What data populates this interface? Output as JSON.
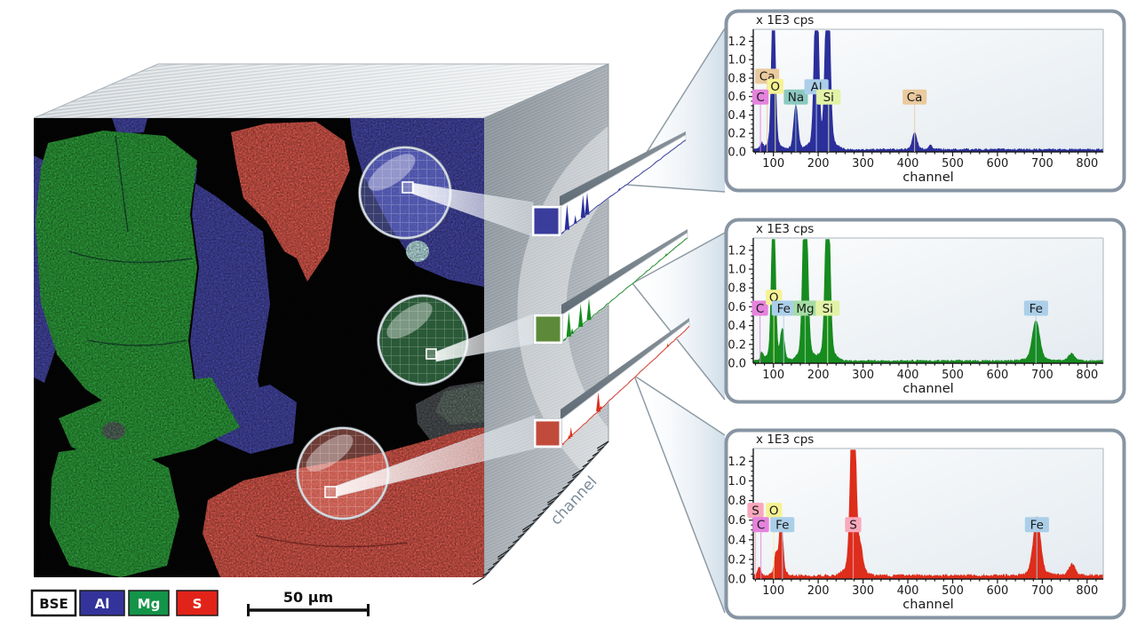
{
  "figure": {
    "background": "#ffffff"
  },
  "colors": {
    "al_blue": "#33339B",
    "mg_green": "#149448",
    "s_red": "#E2231A",
    "map_blue": "#4648A8",
    "map_green": "#2EA13C",
    "map_light_green": "#7FBF7F",
    "map_red": "#E05A4E",
    "rod_blue": "#3A3D9C",
    "rod_green": "#5C8A38",
    "rod_red": "#C14B3B",
    "panel_border": "#8795A3",
    "cube_axis_text": "#7B8B98"
  },
  "element_colors": {
    "C": "#E583DD",
    "O": "#F6F293",
    "Na": "#8BC8C0",
    "Al": "#ABCFE9",
    "Si": "#E3F2A6",
    "Ca": "#EACA9E",
    "Fe": "#ABCFE9",
    "Mg": "#A4DCA4",
    "S": "#F9A8BC"
  },
  "legend": {
    "items": [
      {
        "label": "BSE"
      },
      {
        "label": "Al"
      },
      {
        "label": "Mg"
      },
      {
        "label": "S"
      }
    ],
    "scale_bar_label": "50 µm"
  },
  "cube": {
    "axis_label": "channel"
  },
  "chart_data": [
    {
      "type": "area",
      "title": "x 1E3 cps",
      "xlabel": "channel",
      "region_element": "Al",
      "color": "#2B2F9B",
      "xlim": [
        55,
        836
      ],
      "ylim": [
        0,
        1.25
      ],
      "xticks": [
        100,
        200,
        300,
        400,
        500,
        600,
        700,
        800
      ],
      "yticks": [
        0,
        0.2,
        0.4,
        0.6,
        0.8,
        1,
        1.2
      ],
      "baseline": 0.022,
      "peaks": [
        {
          "element": "C",
          "channel": 74,
          "height": 0.06,
          "sigma": 3
        },
        {
          "element": "O",
          "channel": 100,
          "height": 1.6,
          "sigma": 4
        },
        {
          "element": "Na",
          "channel": 150,
          "height": 0.45,
          "sigma": 4.5
        },
        {
          "element": "Al",
          "channel": 196,
          "height": 1.8,
          "sigma": 4.5
        },
        {
          "element": "Si",
          "channel": 221,
          "height": 1.9,
          "sigma": 5
        },
        {
          "element": "Ca",
          "channel": 415,
          "height": 0.17,
          "sigma": 5
        },
        {
          "element": "Ca",
          "channel": 450,
          "height": 0.045,
          "sigma": 4
        }
      ],
      "labels": [
        {
          "text": "Ca",
          "channel": 86,
          "value": 0.82
        },
        {
          "text": "O",
          "channel": 104,
          "value": 0.71
        },
        {
          "text": "C",
          "channel": 71,
          "value": 0.595
        },
        {
          "text": "Na",
          "channel": 150,
          "value": 0.595
        },
        {
          "text": "Al",
          "channel": 196,
          "value": 0.705
        },
        {
          "text": "Si",
          "channel": 223,
          "value": 0.595
        },
        {
          "text": "Ca",
          "channel": 415,
          "value": 0.595
        }
      ]
    },
    {
      "type": "area",
      "title": "x 1E3 cps",
      "xlabel": "channel",
      "region_element": "Mg",
      "color": "#168B1F",
      "xlim": [
        55,
        836
      ],
      "ylim": [
        0,
        1.25
      ],
      "xticks": [
        100,
        200,
        300,
        400,
        500,
        600,
        700,
        800
      ],
      "yticks": [
        0,
        0.2,
        0.4,
        0.6,
        0.8,
        1,
        1.2
      ],
      "baseline": 0.022,
      "peaks": [
        {
          "element": "C",
          "channel": 74,
          "height": 0.08,
          "sigma": 3
        },
        {
          "element": "O",
          "channel": 100,
          "height": 1.7,
          "sigma": 4
        },
        {
          "element": "Fe",
          "channel": 120,
          "height": 0.3,
          "sigma": 4
        },
        {
          "element": "Mg",
          "channel": 171,
          "height": 1.9,
          "sigma": 5
        },
        {
          "element": "Si",
          "channel": 221,
          "height": 1.85,
          "sigma": 5
        },
        {
          "element": "Fe",
          "channel": 686,
          "height": 0.4,
          "sigma": 8
        },
        {
          "element": "Fe",
          "channel": 765,
          "height": 0.07,
          "sigma": 7
        }
      ],
      "labels": [
        {
          "text": "C",
          "channel": 70,
          "value": 0.585
        },
        {
          "text": "O",
          "channel": 101,
          "value": 0.7
        },
        {
          "text": "Fe",
          "channel": 123,
          "value": 0.585
        },
        {
          "text": "Mg",
          "channel": 171,
          "value": 0.585
        },
        {
          "text": "Si",
          "channel": 221,
          "value": 0.585
        },
        {
          "text": "Fe",
          "channel": 686,
          "value": 0.585
        }
      ]
    },
    {
      "type": "area",
      "title": "x 1E3 cps",
      "xlabel": "channel",
      "region_element": "S",
      "color": "#DD2D1B",
      "xlim": [
        55,
        836
      ],
      "ylim": [
        0,
        1.25
      ],
      "xticks": [
        100,
        200,
        300,
        400,
        500,
        600,
        700,
        800
      ],
      "yticks": [
        0,
        0.2,
        0.4,
        0.6,
        0.8,
        1,
        1.2
      ],
      "baseline": 0.03,
      "peaks": [
        {
          "element": "S",
          "channel": 68,
          "height": 0.08,
          "sigma": 3
        },
        {
          "element": "Fe",
          "channel": 106,
          "height": 0.2,
          "sigma": 3.5
        },
        {
          "element": "Fe",
          "channel": 117,
          "height": 0.55,
          "sigma": 4
        },
        {
          "element": "S",
          "channel": 278,
          "height": 1.9,
          "sigma": 5.5
        },
        {
          "element": "S",
          "channel": 294,
          "height": 0.22,
          "sigma": 5
        },
        {
          "element": "Fe",
          "channel": 688,
          "height": 0.55,
          "sigma": 8
        },
        {
          "element": "Fe",
          "channel": 766,
          "height": 0.11,
          "sigma": 7
        }
      ],
      "labels": [
        {
          "text": "S",
          "channel": 60,
          "value": 0.7
        },
        {
          "text": "O",
          "channel": 101,
          "value": 0.7
        },
        {
          "text": "C",
          "channel": 72,
          "value": 0.555
        },
        {
          "text": "Fe",
          "channel": 120,
          "value": 0.555
        },
        {
          "text": "S",
          "channel": 278,
          "value": 0.555
        },
        {
          "text": "Fe",
          "channel": 688,
          "value": 0.555
        }
      ]
    }
  ]
}
